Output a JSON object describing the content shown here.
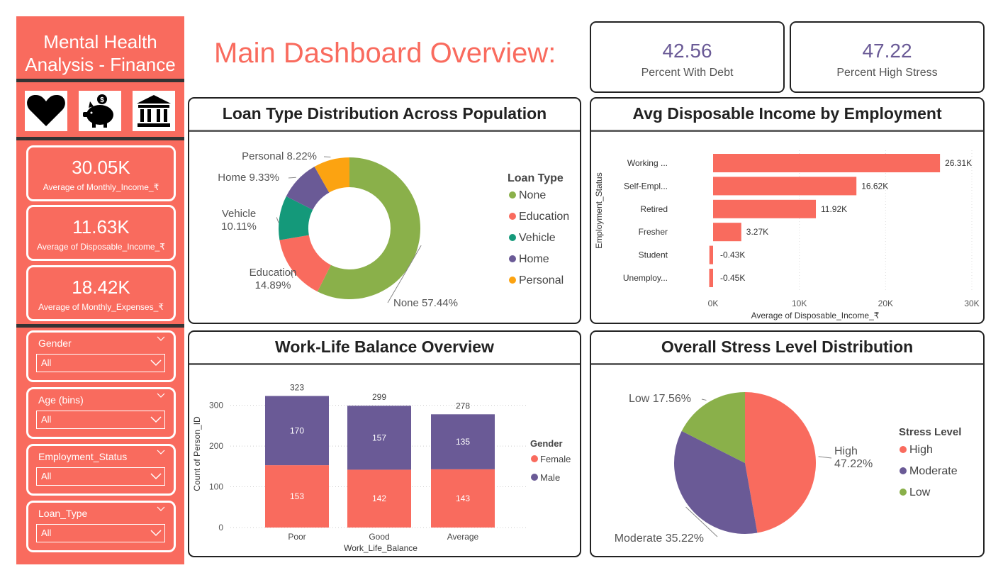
{
  "sidebar": {
    "title_line1": "Mental Health",
    "title_line2": "Analysis - Finance",
    "icons": [
      "heart-icon",
      "piggy-bank-icon",
      "bank-icon"
    ],
    "kpis": [
      {
        "value": "30.05K",
        "label": "Average of Monthly_Income_₹"
      },
      {
        "value": "11.63K",
        "label": "Average of Disposable_Income_₹"
      },
      {
        "value": "18.42K",
        "label": "Average of Monthly_Expenses_₹"
      }
    ],
    "slicers": [
      {
        "title": "Gender",
        "value": "All"
      },
      {
        "title": "Age (bins)",
        "value": "All"
      },
      {
        "title": "Employment_Status",
        "value": "All"
      },
      {
        "title": "Loan_Type",
        "value": "All"
      }
    ]
  },
  "header": {
    "title": "Main Dashboard Overview:"
  },
  "top_cards": [
    {
      "value": "42.56",
      "label": "Percent With Debt"
    },
    {
      "value": "47.22",
      "label": "Percent High Stress"
    }
  ],
  "colors": {
    "coral": "#f96b5e",
    "purple": "#6a5a96",
    "green": "#8ab04a",
    "teal": "#14997a",
    "orange": "#fca311"
  },
  "chart_data": [
    {
      "type": "pie",
      "variant": "donut",
      "title": "Loan Type Distribution Across Population",
      "legend_title": "Loan Type",
      "slices": [
        {
          "name": "None",
          "value": 57.44,
          "label": "None 57.44%",
          "color": "#8ab04a"
        },
        {
          "name": "Education",
          "value": 14.89,
          "label_lines": [
            "Education",
            "14.89%"
          ],
          "color": "#f96b5e"
        },
        {
          "name": "Vehicle",
          "value": 10.11,
          "label_lines": [
            "Vehicle",
            "10.11%"
          ],
          "color": "#14997a"
        },
        {
          "name": "Home",
          "value": 9.33,
          "label": "Home 9.33%",
          "color": "#6a5a96"
        },
        {
          "name": "Personal",
          "value": 8.22,
          "label": "Personal 8.22%",
          "color": "#fca311"
        }
      ]
    },
    {
      "type": "bar",
      "orientation": "horizontal",
      "title": "Avg Disposable Income by Employment",
      "ylabel": "Employment_Status",
      "xlabel": "Average of Disposable_Income_₹",
      "xlim": [
        0,
        30000
      ],
      "xticks": [
        0,
        10000,
        20000,
        30000
      ],
      "xtick_labels": [
        "0K",
        "10K",
        "20K",
        "30K"
      ],
      "categories": [
        "Working ...",
        "Self-Empl...",
        "Retired",
        "Fresher",
        "Student",
        "Unemploy..."
      ],
      "values": [
        26310,
        16620,
        11920,
        3270,
        -430,
        -450
      ],
      "value_labels": [
        "26.31K",
        "16.62K",
        "11.92K",
        "3.27K",
        "-0.43K",
        "-0.45K"
      ]
    },
    {
      "type": "bar",
      "stacked": true,
      "title": "Work-Life Balance Overview",
      "xlabel": "Work_Life_Balance",
      "ylabel": "Count of Person_ID",
      "ylim": [
        0,
        323
      ],
      "yticks": [
        0,
        100,
        200,
        300
      ],
      "legend_title": "Gender",
      "categories": [
        "Poor",
        "Good",
        "Average"
      ],
      "series": [
        {
          "name": "Female",
          "values": [
            153,
            142,
            143
          ],
          "color": "#f96b5e"
        },
        {
          "name": "Male",
          "values": [
            170,
            157,
            135
          ],
          "color": "#6a5a96"
        }
      ],
      "totals": [
        323,
        299,
        278
      ]
    },
    {
      "type": "pie",
      "title": "Overall Stress Level Distribution",
      "legend_title": "Stress Level",
      "slices": [
        {
          "name": "High",
          "value": 47.22,
          "label_lines": [
            "High",
            "47.22%"
          ],
          "color": "#f96b5e"
        },
        {
          "name": "Moderate",
          "value": 35.22,
          "label": "Moderate 35.22%",
          "color": "#6a5a96"
        },
        {
          "name": "Low",
          "value": 17.56,
          "label": "Low 17.56%",
          "color": "#8ab04a"
        }
      ]
    }
  ]
}
